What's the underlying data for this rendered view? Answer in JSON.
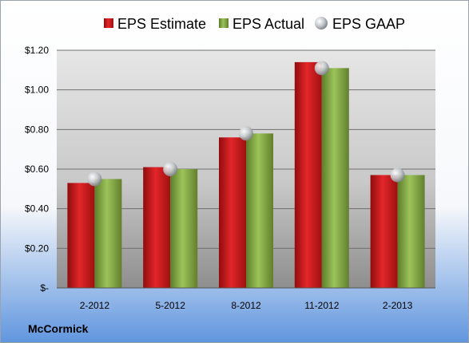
{
  "company": "McCormick",
  "colors": {
    "estimate": "#d0181c",
    "actual": "#8eb74a",
    "gaap": "#c4c8cc"
  },
  "legend": {
    "estimate": "EPS Estimate",
    "actual": "EPS Actual",
    "gaap": "EPS GAAP"
  },
  "chart_data": {
    "type": "bar",
    "categories": [
      "2-2012",
      "5-2012",
      "8-2012",
      "11-2012",
      "2-2013"
    ],
    "series": [
      {
        "name": "EPS Estimate",
        "values": [
          0.53,
          0.61,
          0.76,
          1.14,
          0.57
        ]
      },
      {
        "name": "EPS Actual",
        "values": [
          0.55,
          0.6,
          0.78,
          1.11,
          0.57
        ]
      },
      {
        "name": "EPS GAAP",
        "values": [
          0.55,
          0.6,
          0.78,
          1.11,
          0.57
        ]
      }
    ],
    "ylim": [
      0,
      1.2
    ],
    "yticks": [
      {
        "value": 0,
        "label": "$-"
      },
      {
        "value": 0.2,
        "label": "$0.20"
      },
      {
        "value": 0.4,
        "label": "$0.40"
      },
      {
        "value": 0.6,
        "label": "$0.60"
      },
      {
        "value": 0.8,
        "label": "$0.80"
      },
      {
        "value": 1.0,
        "label": "$1.00"
      },
      {
        "value": 1.2,
        "label": "$1.20"
      }
    ],
    "grid": true,
    "legend_position": "top"
  }
}
